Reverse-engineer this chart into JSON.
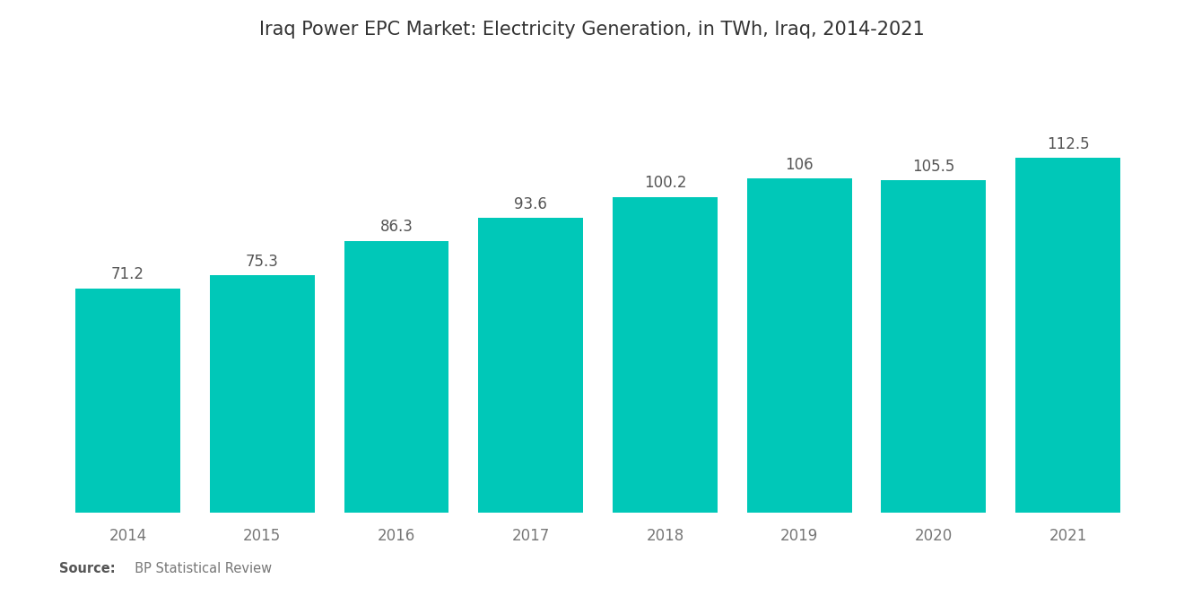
{
  "title": "Iraq Power EPC Market: Electricity Generation, in TWh, Iraq, 2014-2021",
  "years": [
    "2014",
    "2015",
    "2016",
    "2017",
    "2018",
    "2019",
    "2020",
    "2021"
  ],
  "values": [
    71.2,
    75.3,
    86.3,
    93.6,
    100.2,
    106,
    105.5,
    112.5
  ],
  "bar_color": "#00C8B8",
  "background_color": "#ffffff",
  "title_fontsize": 15,
  "label_fontsize": 12,
  "value_fontsize": 12,
  "source_bold": "Source:",
  "source_rest": "  BP Statistical Review",
  "ylim": [
    0,
    140
  ],
  "bar_width": 0.78
}
